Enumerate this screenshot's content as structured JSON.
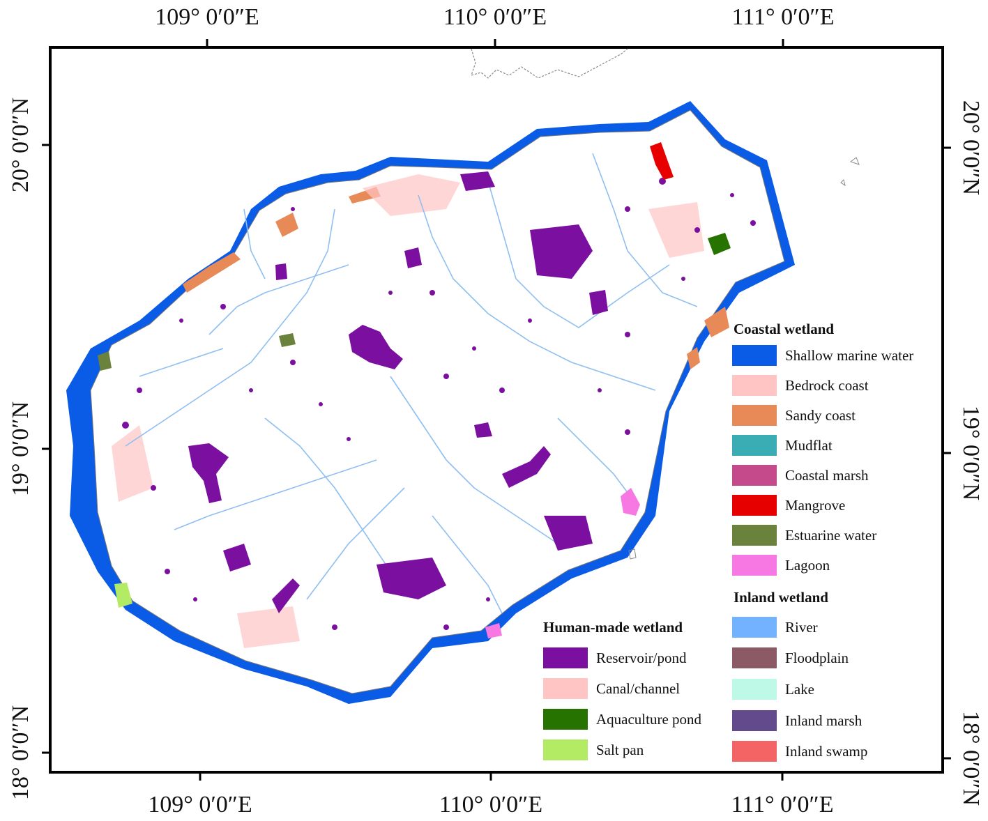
{
  "map": {
    "top_labels": [
      "109° 0′0″E",
      "110° 0′0″E",
      "111° 0′0″E"
    ],
    "bottom_labels": [
      "109° 0′0″E",
      "110° 0′0″E",
      "111° 0′0″E"
    ],
    "left_labels": [
      "20° 0′0″N",
      "19° 0′0″N",
      "18° 0′0″N"
    ],
    "right_labels": [
      "20° 0′0″N",
      "19° 0′0″N",
      "18° 0′0″N"
    ],
    "colors": {
      "land": "#ffffff",
      "coastline": "#999999",
      "river": "#8fbff0",
      "reservoir": "#7a0fa0"
    }
  },
  "legend": {
    "coastal": {
      "title": "Coastal wetland",
      "items": [
        {
          "label": "Shallow marine water",
          "color": "#0a5ce6"
        },
        {
          "label": "Bedrock coast",
          "color": "#ffc4c4"
        },
        {
          "label": "Sandy coast",
          "color": "#e88a58"
        },
        {
          "label": "Mudflat",
          "color": "#3aacb4"
        },
        {
          "label": "Coastal marsh",
          "color": "#c44a8c"
        },
        {
          "label": "Mangrove",
          "color": "#e60000"
        },
        {
          "label": "Estuarine water",
          "color": "#6b823c"
        },
        {
          "label": "Lagoon",
          "color": "#f778e2"
        }
      ]
    },
    "inland": {
      "title": "Inland wetland",
      "items": [
        {
          "label": "River",
          "color": "#73b2ff"
        },
        {
          "label": "Floodplain",
          "color": "#8c5a64"
        },
        {
          "label": "Lake",
          "color": "#bef9e8"
        },
        {
          "label": "Inland marsh",
          "color": "#634a8c"
        },
        {
          "label": "Inland swamp",
          "color": "#f56464"
        }
      ]
    },
    "human_made": {
      "title": "Human-made wetland",
      "items": [
        {
          "label": "Reservoir/pond",
          "color": "#7a0fa0"
        },
        {
          "label": "Canal/channel",
          "color": "#ffc4c4"
        },
        {
          "label": "Aquaculture pond",
          "color": "#267300"
        },
        {
          "label": "Salt pan",
          "color": "#b4eb64"
        }
      ]
    }
  }
}
